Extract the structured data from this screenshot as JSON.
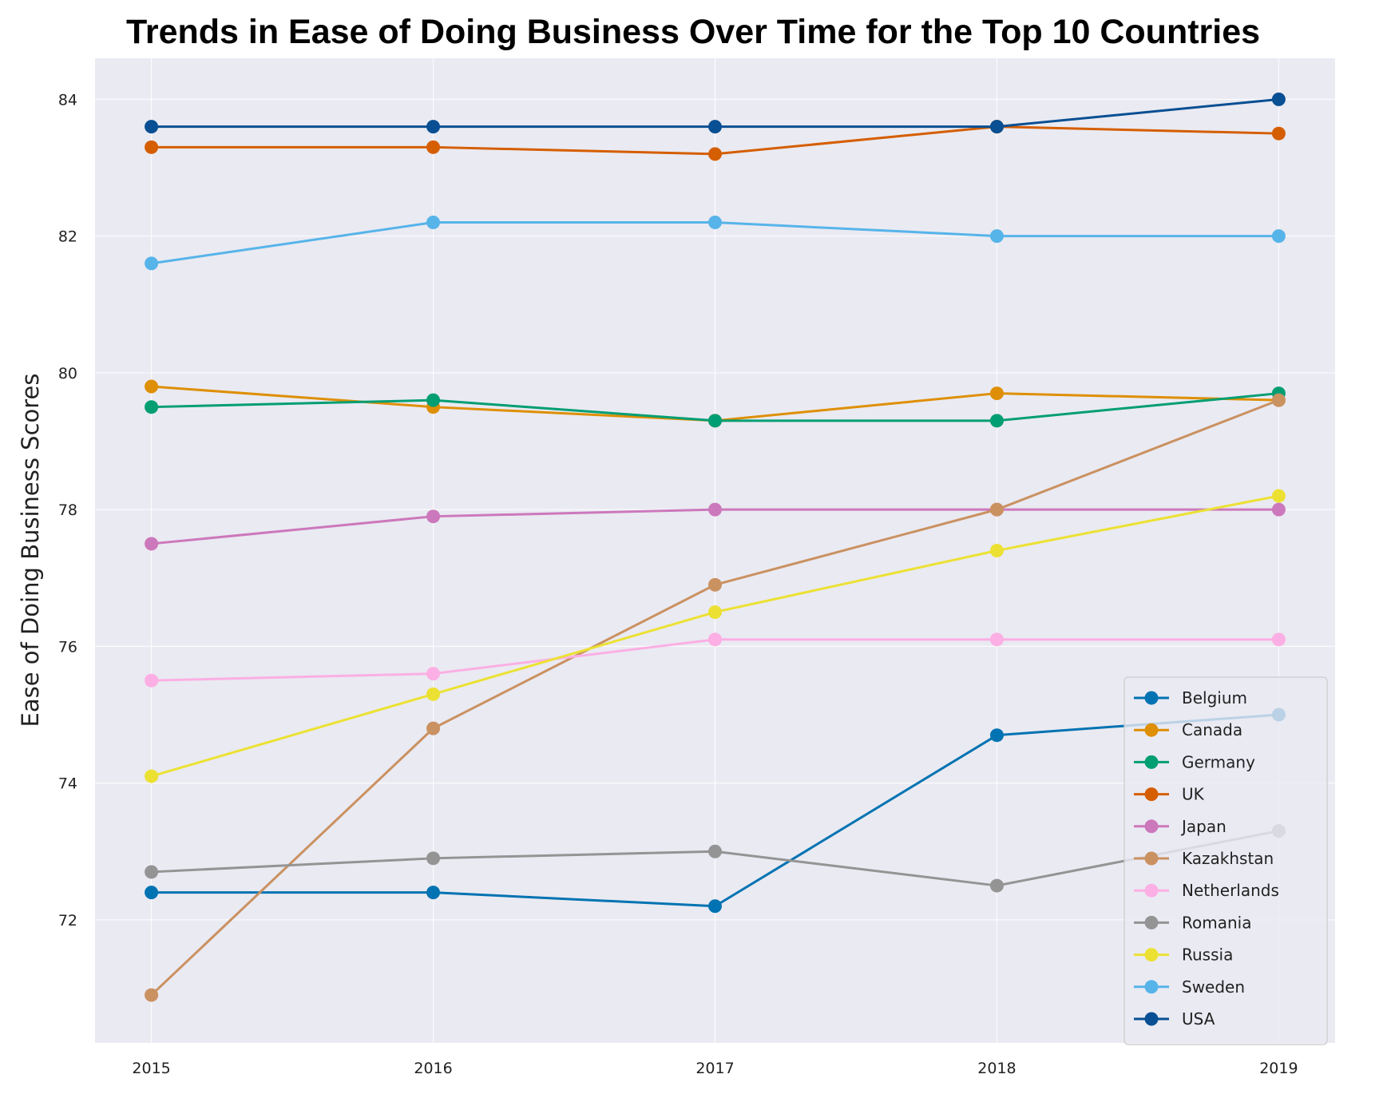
{
  "chart_data": {
    "type": "line",
    "title": "Trends in Ease of Doing Business Over Time for the Top 10 Countries",
    "xlabel": "",
    "ylabel": "Ease of Doing Business Scores",
    "x": [
      "2015",
      "2016",
      "2017",
      "2018",
      "2019"
    ],
    "xlim": [
      2014.8,
      2019.2
    ],
    "ylim": [
      70.2,
      84.6
    ],
    "yticks": [
      "72",
      "74",
      "76",
      "78",
      "80",
      "82",
      "84"
    ],
    "grid": true,
    "legend_position": "bottom-right",
    "series": [
      {
        "name": "Belgium",
        "color": "#0173b2",
        "values": [
          72.4,
          72.4,
          72.2,
          74.7,
          75.0
        ]
      },
      {
        "name": "Canada",
        "color": "#de8f05",
        "values": [
          79.8,
          79.5,
          79.3,
          79.7,
          79.6
        ]
      },
      {
        "name": "Germany",
        "color": "#029e73",
        "values": [
          79.5,
          79.6,
          79.3,
          79.3,
          79.7
        ]
      },
      {
        "name": "UK",
        "color": "#d55e00",
        "values": [
          83.3,
          83.3,
          83.2,
          83.6,
          83.5
        ]
      },
      {
        "name": "Japan",
        "color": "#cc78bc",
        "values": [
          77.5,
          77.9,
          78.0,
          78.0,
          78.0
        ]
      },
      {
        "name": "Kazakhstan",
        "color": "#ca9161",
        "values": [
          70.9,
          74.8,
          76.9,
          78.0,
          79.6
        ]
      },
      {
        "name": "Netherlands",
        "color": "#fbafe4",
        "values": [
          75.5,
          75.6,
          76.1,
          76.1,
          76.1
        ]
      },
      {
        "name": "Romania",
        "color": "#949494",
        "values": [
          72.7,
          72.9,
          73.0,
          72.5,
          73.3
        ]
      },
      {
        "name": "Russia",
        "color": "#ece133",
        "values": [
          74.1,
          75.3,
          76.5,
          77.4,
          78.2
        ]
      },
      {
        "name": "Sweden",
        "color": "#56b4e9",
        "values": [
          81.6,
          82.2,
          82.2,
          82.0,
          82.0
        ]
      },
      {
        "name": "USA",
        "color": "#084f93",
        "values": [
          83.6,
          83.6,
          83.6,
          83.6,
          84.0
        ]
      }
    ]
  }
}
